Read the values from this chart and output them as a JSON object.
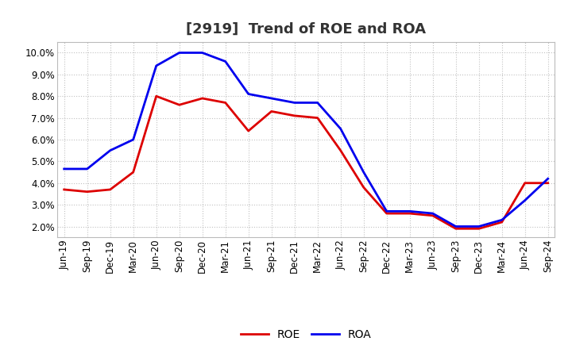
{
  "title": "[2919]  Trend of ROE and ROA",
  "x_labels": [
    "Jun-19",
    "Sep-19",
    "Dec-19",
    "Mar-20",
    "Jun-20",
    "Sep-20",
    "Dec-20",
    "Mar-21",
    "Jun-21",
    "Sep-21",
    "Dec-21",
    "Mar-22",
    "Jun-22",
    "Sep-22",
    "Dec-22",
    "Mar-23",
    "Jun-23",
    "Sep-23",
    "Dec-23",
    "Mar-24",
    "Jun-24",
    "Sep-24"
  ],
  "roe": [
    3.7,
    3.6,
    3.7,
    4.5,
    8.0,
    7.6,
    7.9,
    7.7,
    6.4,
    7.3,
    7.1,
    7.0,
    5.5,
    3.8,
    2.6,
    2.6,
    2.5,
    1.9,
    1.9,
    2.2,
    4.0,
    4.0
  ],
  "roa": [
    4.65,
    4.65,
    5.5,
    6.0,
    9.4,
    10.0,
    10.0,
    9.6,
    8.1,
    7.9,
    7.7,
    7.7,
    6.5,
    4.5,
    2.7,
    2.7,
    2.6,
    2.0,
    2.0,
    2.3,
    3.2,
    4.2
  ],
  "roe_color": "#dd0000",
  "roa_color": "#0000ee",
  "background_color": "#ffffff",
  "plot_bg_color": "#ffffff",
  "grid_color": "#bbbbbb",
  "ylim": [
    1.5,
    10.5
  ],
  "yticks": [
    2.0,
    3.0,
    4.0,
    5.0,
    6.0,
    7.0,
    8.0,
    9.0,
    10.0
  ],
  "line_width": 2.0,
  "title_fontsize": 13,
  "tick_fontsize": 8.5,
  "legend_fontsize": 10
}
